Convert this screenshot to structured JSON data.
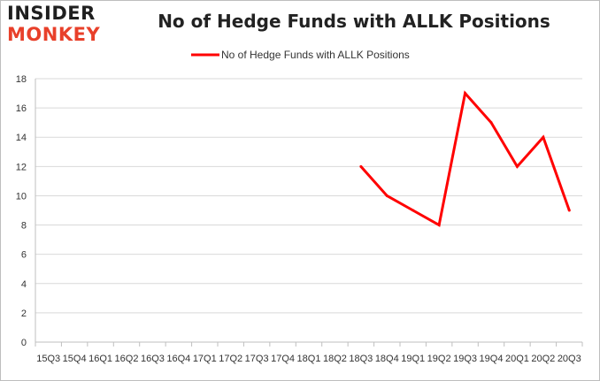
{
  "brand": {
    "logo_top": "INSIDER",
    "logo_bottom": "MONKEY"
  },
  "chart_data": {
    "type": "line",
    "title": "No of Hedge Funds with ALLK Positions",
    "xlabel": "",
    "ylabel": "",
    "categories": [
      "15Q3",
      "15Q4",
      "16Q1",
      "16Q2",
      "16Q3",
      "16Q4",
      "17Q1",
      "17Q2",
      "17Q3",
      "17Q4",
      "18Q1",
      "18Q2",
      "18Q3",
      "18Q4",
      "19Q1",
      "19Q2",
      "19Q3",
      "19Q4",
      "20Q1",
      "20Q2",
      "20Q3"
    ],
    "series": [
      {
        "name": "No of Hedge Funds with ALLK Positions",
        "color": "#ff0000",
        "values": [
          null,
          null,
          null,
          null,
          null,
          null,
          null,
          null,
          null,
          null,
          null,
          null,
          12,
          10,
          9,
          8,
          17,
          15,
          12,
          14,
          9
        ]
      }
    ],
    "ylim": [
      0,
      18
    ],
    "yticks": [
      0,
      2,
      4,
      6,
      8,
      10,
      12,
      14,
      16,
      18
    ],
    "grid": true,
    "legend_position": "top-center"
  }
}
